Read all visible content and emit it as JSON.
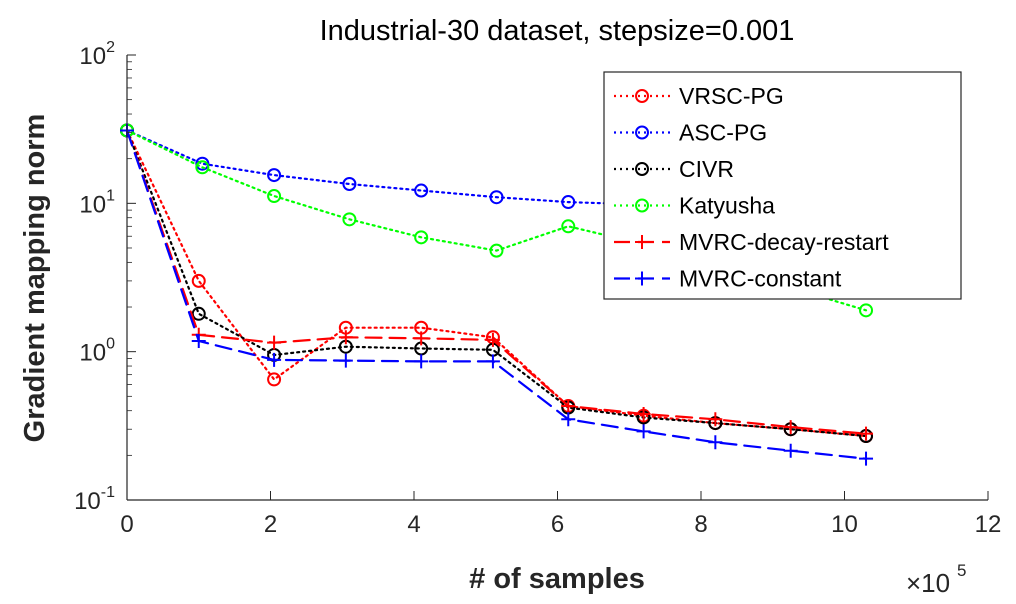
{
  "chart_data": {
    "type": "line",
    "title": "Industrial-30 dataset, stepsize=0.001",
    "xlabel": "# of samples",
    "ylabel": "Gradient mapping norm",
    "x_multiplier": {
      "base": "×10",
      "exponent": "5"
    },
    "xlim": [
      0,
      12
    ],
    "ylim": [
      0.1,
      100
    ],
    "yscale": "log",
    "xticks": [
      "0",
      "2",
      "4",
      "6",
      "8",
      "10",
      "12"
    ],
    "yticks": [
      {
        "base": "10",
        "exponent": "2",
        "value": 100
      },
      {
        "base": "10",
        "exponent": "1",
        "value": 10
      },
      {
        "base": "10",
        "exponent": "0",
        "value": 1
      },
      {
        "base": "10",
        "exponent": "-1",
        "value": 0.1
      }
    ],
    "grid": false,
    "legend_position": "top-right",
    "series": [
      {
        "name": "VRSC-PG",
        "color": "#ff0000",
        "linestyle": "dotted",
        "marker": "circle",
        "x": [
          0,
          1.0,
          2.05,
          3.05,
          4.1,
          5.1,
          6.15,
          7.2,
          8.2,
          9.25,
          10.3
        ],
        "y": [
          31,
          3.0,
          0.65,
          1.45,
          1.45,
          1.25,
          0.43,
          0.37,
          0.33,
          0.3,
          0.27
        ]
      },
      {
        "name": "ASC-PG",
        "color": "#0000ff",
        "linestyle": "dotted",
        "marker": "circle",
        "x": [
          0,
          1.05,
          2.05,
          3.1,
          4.1,
          5.15,
          6.15,
          7.2,
          8.2,
          9.25,
          10.3
        ],
        "y": [
          31,
          18.5,
          15.5,
          13.5,
          12.2,
          11.0,
          10.2,
          9.8,
          9.0,
          8.4,
          7.8
        ]
      },
      {
        "name": "CIVR",
        "color": "#000000",
        "linestyle": "dotted",
        "marker": "circle",
        "x": [
          0,
          1.0,
          2.05,
          3.05,
          4.1,
          5.1,
          6.15,
          7.2,
          8.2,
          9.25,
          10.3
        ],
        "y": [
          31,
          1.8,
          0.95,
          1.08,
          1.05,
          1.03,
          0.42,
          0.36,
          0.33,
          0.3,
          0.27
        ]
      },
      {
        "name": "Katyusha",
        "color": "#00ff00",
        "linestyle": "dotted",
        "marker": "circle",
        "x": [
          0,
          1.05,
          2.05,
          3.1,
          4.1,
          5.15,
          6.15,
          7.2,
          8.2,
          9.25,
          10.3
        ],
        "y": [
          31,
          17.5,
          11.2,
          7.8,
          5.9,
          4.8,
          7.0,
          5.3,
          3.8,
          2.7,
          1.9
        ]
      },
      {
        "name": "MVRC-decay-restart",
        "color": "#ff0000",
        "linestyle": "dashed",
        "marker": "plus",
        "x": [
          0,
          1.0,
          2.05,
          3.05,
          4.1,
          5.1,
          6.15,
          7.2,
          8.2,
          9.25,
          10.3
        ],
        "y": [
          31,
          1.3,
          1.15,
          1.25,
          1.23,
          1.2,
          0.43,
          0.38,
          0.35,
          0.31,
          0.28
        ]
      },
      {
        "name": "MVRC-constant",
        "color": "#0000ff",
        "linestyle": "dashed",
        "marker": "plus",
        "x": [
          0,
          1.0,
          2.05,
          3.05,
          4.1,
          5.1,
          6.15,
          7.2,
          8.2,
          9.25,
          10.3
        ],
        "y": [
          31,
          1.18,
          0.88,
          0.87,
          0.86,
          0.86,
          0.35,
          0.29,
          0.245,
          0.215,
          0.19
        ]
      }
    ]
  }
}
